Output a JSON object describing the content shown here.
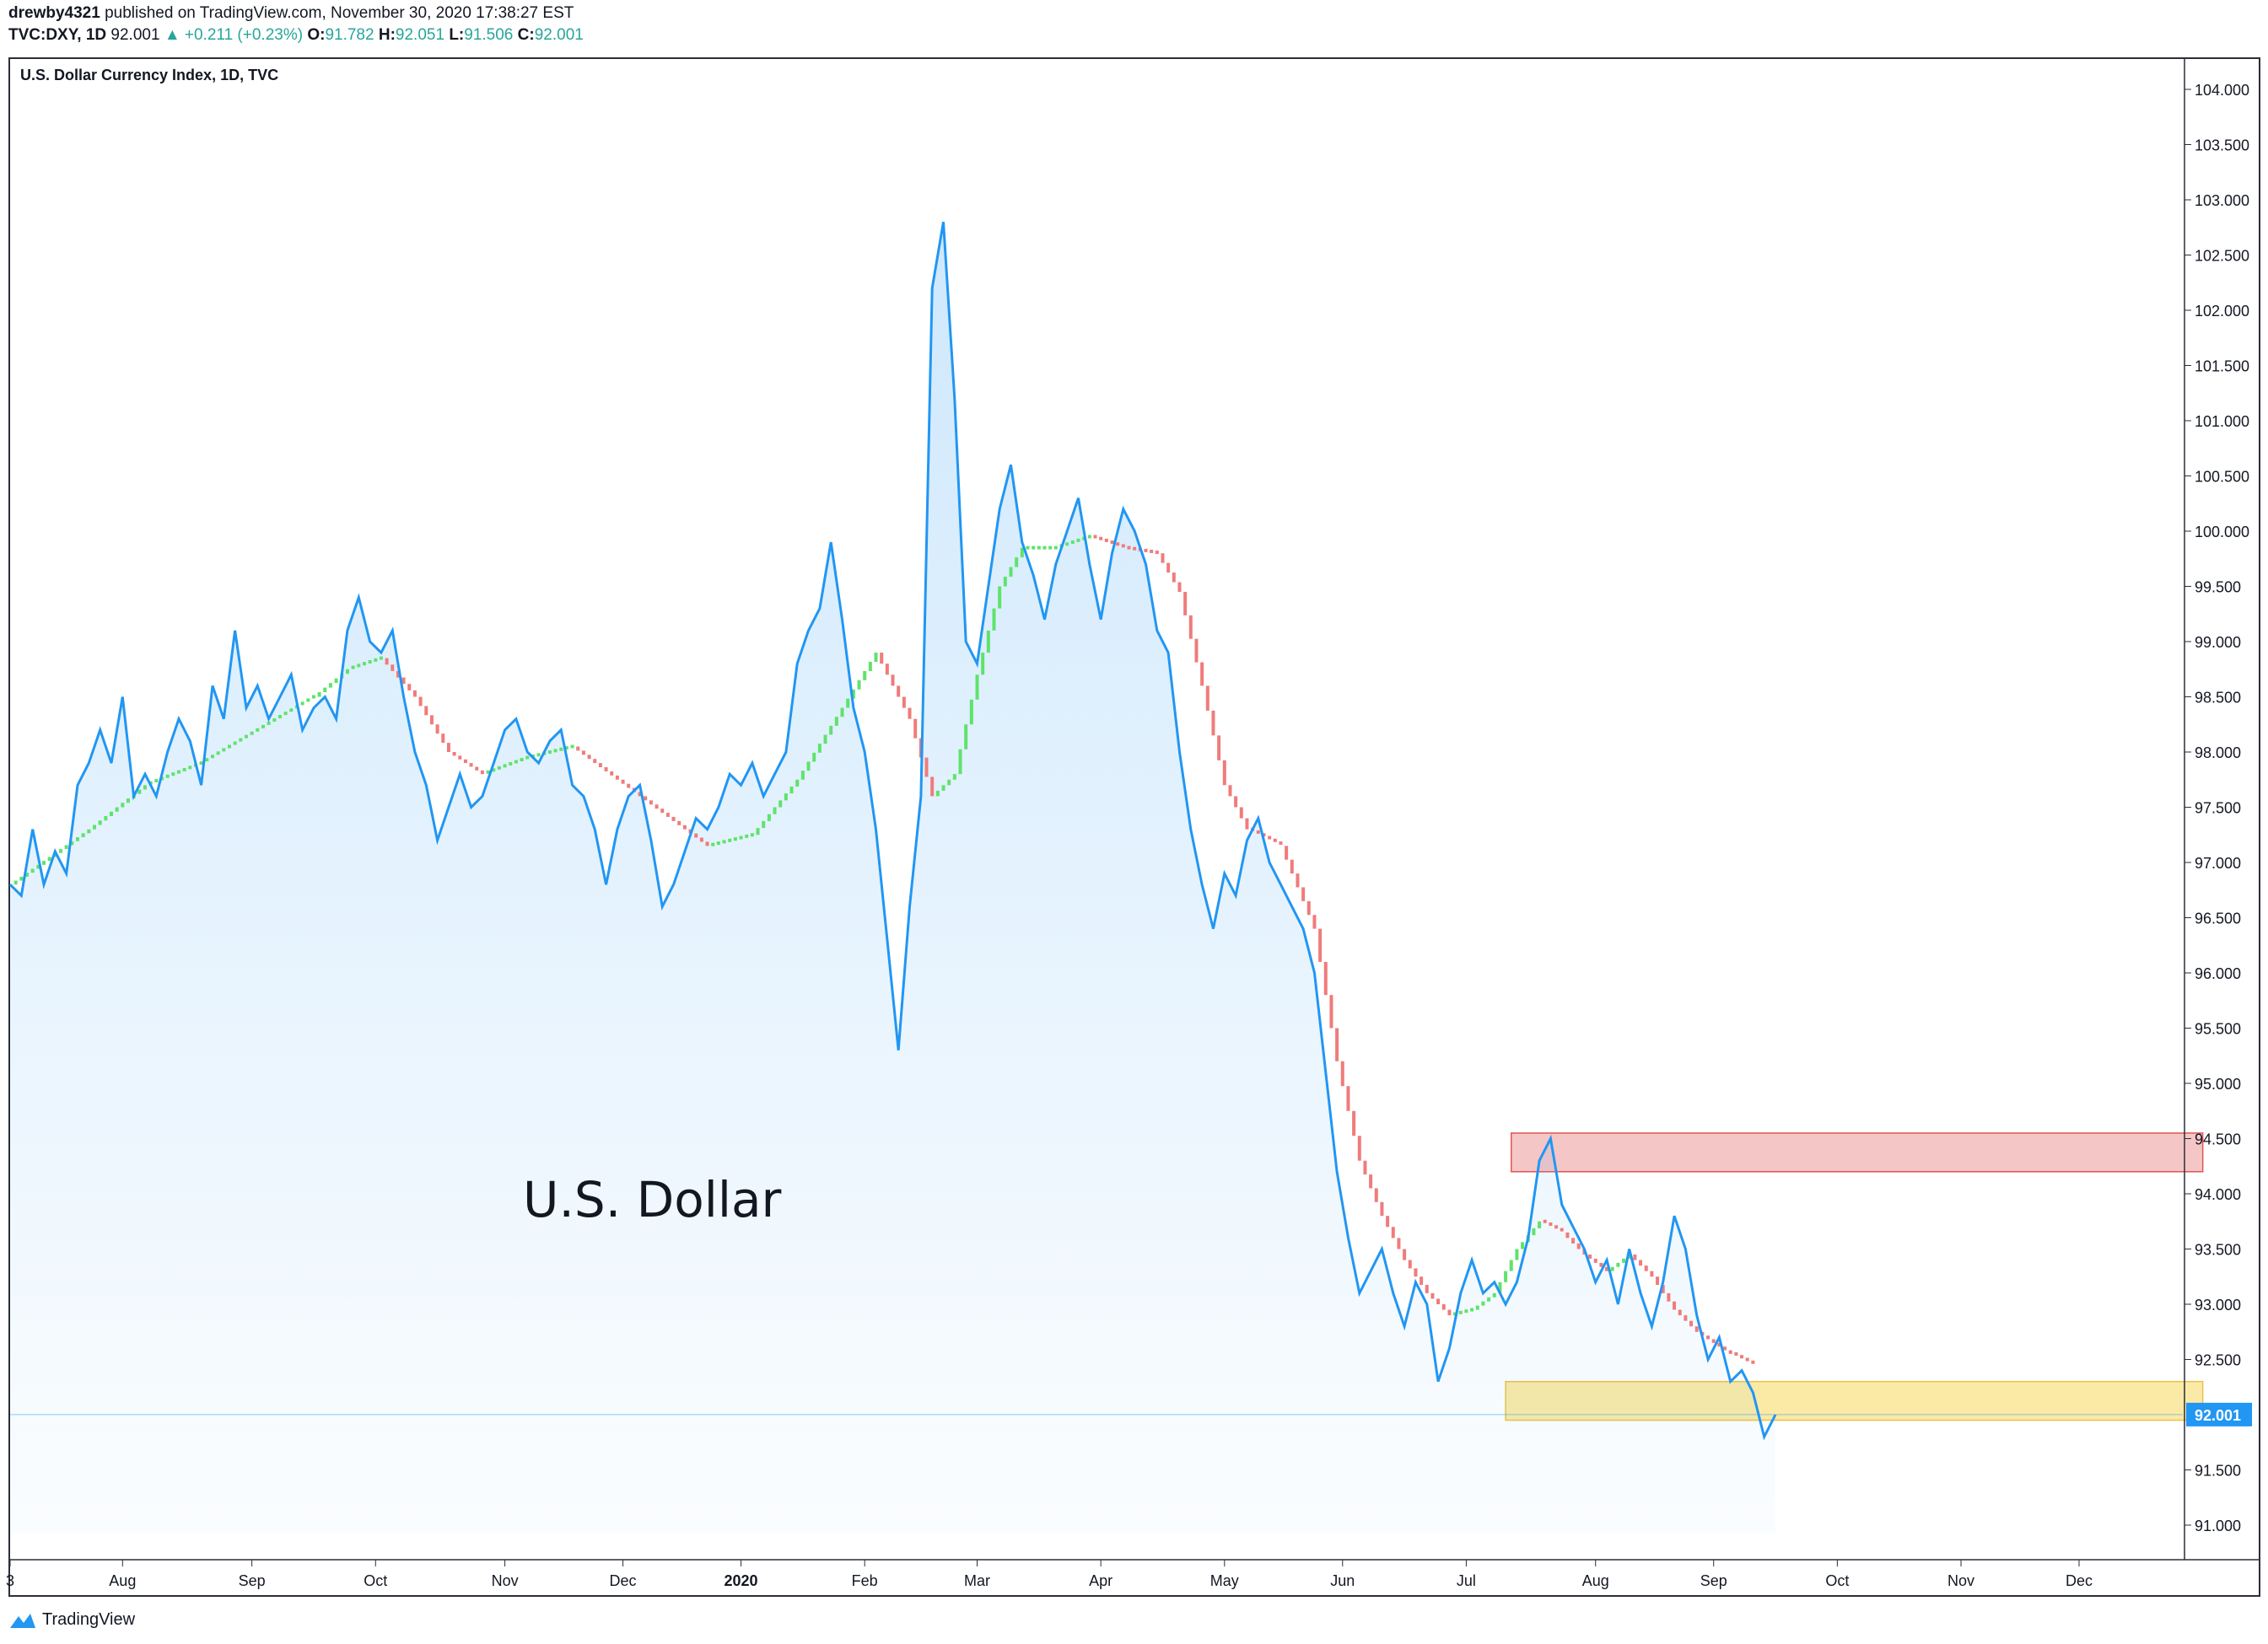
{
  "header": {
    "user": "drewby4321",
    "published_text": "published on TradingView.com, November 30, 2020 17:38:27 EST",
    "symbol_line": "TVC:DXY, 1D",
    "last": "92.001",
    "change": "+0.211 (+0.23%)",
    "o_label": "O:",
    "o": "91.782",
    "h_label": "H:",
    "h": "92.051",
    "l_label": "L:",
    "l": "91.506",
    "c_label": "C:",
    "c": "92.001"
  },
  "footer": {
    "brand": "TradingView"
  },
  "colors": {
    "price_line": "#2196f3",
    "area_fill": "#2196f3",
    "ma_up": "#5ee36a",
    "ma_down": "#f07b7b",
    "resistance_box": "#f5c6c6",
    "resistance_border": "#e05555",
    "support_box": "#fbeaa6",
    "support_border": "#e8c34a",
    "last_price_label_bg": "#2196f3",
    "positive": "#26a69a"
  },
  "chart_data": {
    "type": "area",
    "title": "U.S. Dollar Currency Index, 1D, TVC",
    "annotation": "U.S. Dollar",
    "last_price_label": "92.001",
    "ylim": [
      90.6,
      104.3
    ],
    "y_ticks": [
      "104.000",
      "103.500",
      "103.000",
      "102.500",
      "102.000",
      "101.500",
      "101.000",
      "100.500",
      "100.000",
      "99.500",
      "99.000",
      "98.500",
      "98.000",
      "97.500",
      "97.000",
      "96.500",
      "96.000",
      "95.500",
      "95.000",
      "94.500",
      "94.000",
      "93.500",
      "93.000",
      "92.500",
      "91.500",
      "91.000"
    ],
    "x_ticks": [
      {
        "t": 0,
        "label": "3",
        "bold": false
      },
      {
        "t": 20,
        "label": "Aug",
        "bold": false
      },
      {
        "t": 43,
        "label": "Sep",
        "bold": false
      },
      {
        "t": 65,
        "label": "Oct",
        "bold": false
      },
      {
        "t": 88,
        "label": "Nov",
        "bold": false
      },
      {
        "t": 109,
        "label": "Dec",
        "bold": false
      },
      {
        "t": 130,
        "label": "2020",
        "bold": true
      },
      {
        "t": 152,
        "label": "Feb",
        "bold": false
      },
      {
        "t": 172,
        "label": "Mar",
        "bold": false
      },
      {
        "t": 194,
        "label": "Apr",
        "bold": false
      },
      {
        "t": 216,
        "label": "May",
        "bold": false
      },
      {
        "t": 237,
        "label": "Jun",
        "bold": false
      },
      {
        "t": 259,
        "label": "Jul",
        "bold": false
      },
      {
        "t": 282,
        "label": "Aug",
        "bold": false
      },
      {
        "t": 303,
        "label": "Sep",
        "bold": false
      },
      {
        "t": 325,
        "label": "Oct",
        "bold": false
      },
      {
        "t": 347,
        "label": "Nov",
        "bold": false
      },
      {
        "t": 368,
        "label": "Dec",
        "bold": false
      }
    ],
    "t_range": [
      0,
      392
    ],
    "price_series": {
      "name": "DXY",
      "points": [
        [
          0,
          96.8
        ],
        [
          2,
          96.7
        ],
        [
          4,
          97.3
        ],
        [
          6,
          96.8
        ],
        [
          8,
          97.1
        ],
        [
          10,
          96.9
        ],
        [
          12,
          97.7
        ],
        [
          14,
          97.9
        ],
        [
          16,
          98.2
        ],
        [
          18,
          97.9
        ],
        [
          20,
          98.5
        ],
        [
          22,
          97.6
        ],
        [
          24,
          97.8
        ],
        [
          26,
          97.6
        ],
        [
          28,
          98.0
        ],
        [
          30,
          98.3
        ],
        [
          32,
          98.1
        ],
        [
          34,
          97.7
        ],
        [
          36,
          98.6
        ],
        [
          38,
          98.3
        ],
        [
          40,
          99.1
        ],
        [
          42,
          98.4
        ],
        [
          44,
          98.6
        ],
        [
          46,
          98.3
        ],
        [
          48,
          98.5
        ],
        [
          50,
          98.7
        ],
        [
          52,
          98.2
        ],
        [
          54,
          98.4
        ],
        [
          56,
          98.5
        ],
        [
          58,
          98.3
        ],
        [
          60,
          99.1
        ],
        [
          62,
          99.4
        ],
        [
          64,
          99.0
        ],
        [
          66,
          98.9
        ],
        [
          68,
          99.1
        ],
        [
          70,
          98.5
        ],
        [
          72,
          98.0
        ],
        [
          74,
          97.7
        ],
        [
          76,
          97.2
        ],
        [
          78,
          97.5
        ],
        [
          80,
          97.8
        ],
        [
          82,
          97.5
        ],
        [
          84,
          97.6
        ],
        [
          86,
          97.9
        ],
        [
          88,
          98.2
        ],
        [
          90,
          98.3
        ],
        [
          92,
          98.0
        ],
        [
          94,
          97.9
        ],
        [
          96,
          98.1
        ],
        [
          98,
          98.2
        ],
        [
          100,
          97.7
        ],
        [
          102,
          97.6
        ],
        [
          104,
          97.3
        ],
        [
          106,
          96.8
        ],
        [
          108,
          97.3
        ],
        [
          110,
          97.6
        ],
        [
          112,
          97.7
        ],
        [
          114,
          97.2
        ],
        [
          116,
          96.6
        ],
        [
          118,
          96.8
        ],
        [
          120,
          97.1
        ],
        [
          122,
          97.4
        ],
        [
          124,
          97.3
        ],
        [
          126,
          97.5
        ],
        [
          128,
          97.8
        ],
        [
          130,
          97.7
        ],
        [
          132,
          97.9
        ],
        [
          134,
          97.6
        ],
        [
          136,
          97.8
        ],
        [
          138,
          98.0
        ],
        [
          140,
          98.8
        ],
        [
          142,
          99.1
        ],
        [
          144,
          99.3
        ],
        [
          146,
          99.9
        ],
        [
          148,
          99.2
        ],
        [
          150,
          98.4
        ],
        [
          152,
          98.0
        ],
        [
          154,
          97.3
        ],
        [
          156,
          96.3
        ],
        [
          158,
          95.3
        ],
        [
          160,
          96.6
        ],
        [
          162,
          97.6
        ],
        [
          164,
          102.2
        ],
        [
          166,
          102.8
        ],
        [
          168,
          101.2
        ],
        [
          170,
          99.0
        ],
        [
          172,
          98.8
        ],
        [
          174,
          99.5
        ],
        [
          176,
          100.2
        ],
        [
          178,
          100.6
        ],
        [
          180,
          99.9
        ],
        [
          182,
          99.6
        ],
        [
          184,
          99.2
        ],
        [
          186,
          99.7
        ],
        [
          188,
          100.0
        ],
        [
          190,
          100.3
        ],
        [
          192,
          99.7
        ],
        [
          194,
          99.2
        ],
        [
          196,
          99.8
        ],
        [
          198,
          100.2
        ],
        [
          200,
          100.0
        ],
        [
          202,
          99.7
        ],
        [
          204,
          99.1
        ],
        [
          206,
          98.9
        ],
        [
          208,
          98.0
        ],
        [
          210,
          97.3
        ],
        [
          212,
          96.8
        ],
        [
          214,
          96.4
        ],
        [
          216,
          96.9
        ],
        [
          218,
          96.7
        ],
        [
          220,
          97.2
        ],
        [
          222,
          97.4
        ],
        [
          224,
          97.0
        ],
        [
          226,
          96.8
        ],
        [
          228,
          96.6
        ],
        [
          230,
          96.4
        ],
        [
          232,
          96.0
        ],
        [
          234,
          95.1
        ],
        [
          236,
          94.2
        ],
        [
          238,
          93.6
        ],
        [
          240,
          93.1
        ],
        [
          242,
          93.3
        ],
        [
          244,
          93.5
        ],
        [
          246,
          93.1
        ],
        [
          248,
          92.8
        ],
        [
          250,
          93.2
        ],
        [
          252,
          93.0
        ],
        [
          254,
          92.3
        ],
        [
          256,
          92.6
        ],
        [
          258,
          93.1
        ],
        [
          260,
          93.4
        ],
        [
          262,
          93.1
        ],
        [
          264,
          93.2
        ],
        [
          266,
          93.0
        ],
        [
          268,
          93.2
        ],
        [
          270,
          93.6
        ],
        [
          272,
          94.3
        ],
        [
          274,
          94.5
        ],
        [
          276,
          93.9
        ],
        [
          278,
          93.7
        ],
        [
          280,
          93.5
        ],
        [
          282,
          93.2
        ],
        [
          284,
          93.4
        ],
        [
          286,
          93.0
        ],
        [
          288,
          93.5
        ],
        [
          290,
          93.1
        ],
        [
          292,
          92.8
        ],
        [
          294,
          93.2
        ],
        [
          296,
          93.8
        ],
        [
          298,
          93.5
        ],
        [
          300,
          92.9
        ],
        [
          302,
          92.5
        ],
        [
          304,
          92.7
        ],
        [
          306,
          92.3
        ],
        [
          308,
          92.4
        ],
        [
          310,
          92.2
        ],
        [
          312,
          91.8
        ],
        [
          314,
          92.0
        ]
      ]
    },
    "ma_series": {
      "name": "Moving average",
      "points": [
        [
          0,
          96.8
        ],
        [
          14,
          97.3
        ],
        [
          24,
          97.7
        ],
        [
          34,
          97.9
        ],
        [
          44,
          98.2
        ],
        [
          54,
          98.5
        ],
        [
          60,
          98.75
        ],
        [
          66,
          98.85
        ],
        [
          72,
          98.5
        ],
        [
          78,
          98.0
        ],
        [
          84,
          97.8
        ],
        [
          92,
          97.95
        ],
        [
          100,
          98.05
        ],
        [
          108,
          97.75
        ],
        [
          116,
          97.45
        ],
        [
          124,
          97.15
        ],
        [
          132,
          97.25
        ],
        [
          140,
          97.75
        ],
        [
          148,
          98.4
        ],
        [
          154,
          98.9
        ],
        [
          160,
          98.3
        ],
        [
          164,
          97.6
        ],
        [
          168,
          97.8
        ],
        [
          172,
          98.7
        ],
        [
          176,
          99.5
        ],
        [
          180,
          99.85
        ],
        [
          186,
          99.85
        ],
        [
          192,
          99.95
        ],
        [
          198,
          99.85
        ],
        [
          204,
          99.8
        ],
        [
          208,
          99.45
        ],
        [
          212,
          98.6
        ],
        [
          216,
          97.7
        ],
        [
          220,
          97.3
        ],
        [
          226,
          97.15
        ],
        [
          232,
          96.4
        ],
        [
          236,
          95.2
        ],
        [
          240,
          94.3
        ],
        [
          244,
          93.8
        ],
        [
          248,
          93.4
        ],
        [
          252,
          93.1
        ],
        [
          256,
          92.9
        ],
        [
          260,
          92.95
        ],
        [
          264,
          93.1
        ],
        [
          268,
          93.5
        ],
        [
          272,
          93.75
        ],
        [
          276,
          93.65
        ],
        [
          280,
          93.45
        ],
        [
          284,
          93.3
        ],
        [
          288,
          93.45
        ],
        [
          292,
          93.25
        ],
        [
          296,
          92.95
        ],
        [
          300,
          92.75
        ],
        [
          306,
          92.55
        ],
        [
          310,
          92.45
        ]
      ]
    },
    "boxes": [
      {
        "name": "resistance-zone",
        "t0": 267,
        "t1": 390,
        "y0": 94.2,
        "y1": 94.55
      },
      {
        "name": "support-zone",
        "t0": 266,
        "t1": 390,
        "y0": 91.95,
        "y1": 92.3
      }
    ]
  }
}
